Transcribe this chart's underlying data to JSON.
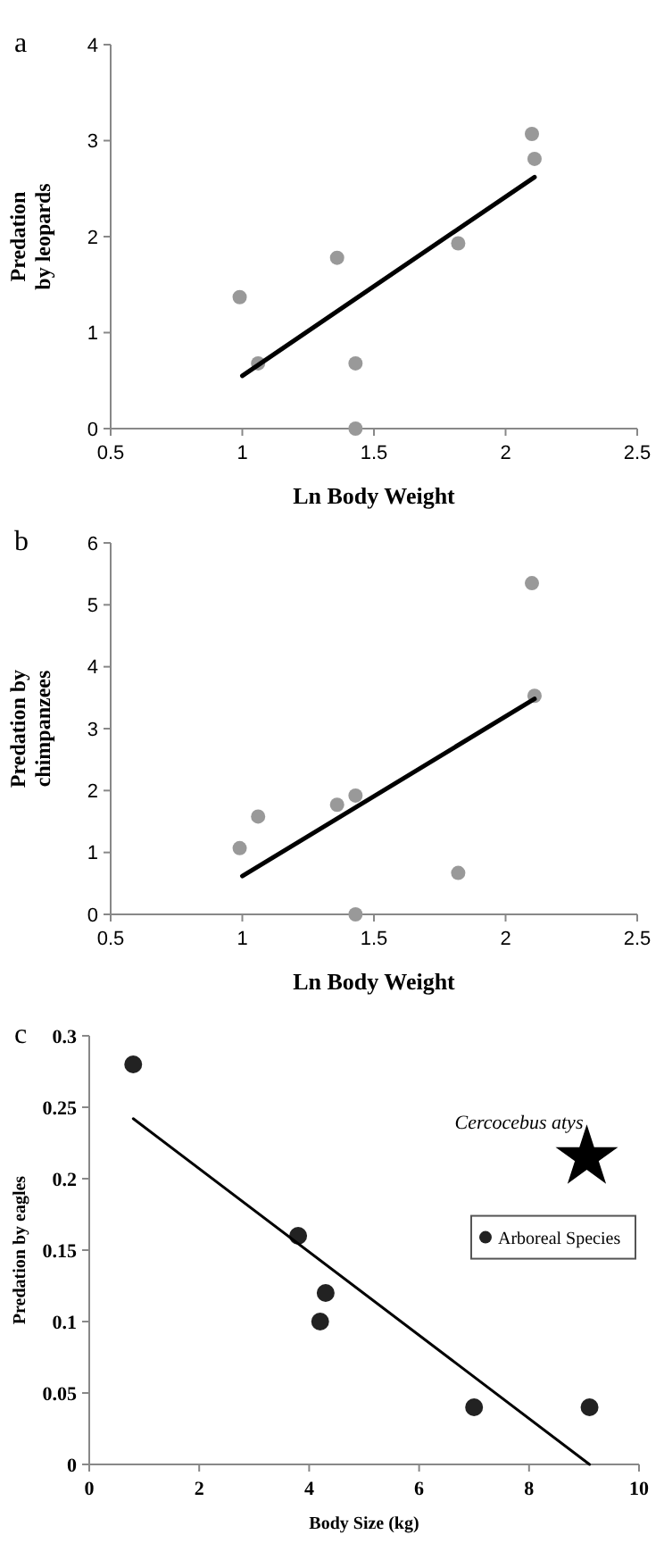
{
  "chart_data": [
    {
      "type": "scatter",
      "title": "a",
      "xlabel": "Ln Body Weight",
      "ylabel": "Predation\nby leopards",
      "xlim": [
        0.5,
        2.5
      ],
      "xticks": [
        0.5,
        1,
        1.5,
        2,
        2.5
      ],
      "ylim": [
        0,
        4
      ],
      "yticks": [
        0,
        1,
        2,
        3,
        4
      ],
      "series": [
        {
          "marker": "circle",
          "color": "#999999",
          "x": [
            0.99,
            1.06,
            1.36,
            1.43,
            1.43,
            1.82,
            2.1,
            2.11
          ],
          "values": [
            1.37,
            0.68,
            1.78,
            0.68,
            0,
            1.93,
            3.07,
            2.81
          ]
        },
        {
          "type": "line",
          "color": "#000000",
          "x": [
            1.0,
            2.11
          ],
          "values": [
            0.55,
            2.62
          ]
        }
      ]
    },
    {
      "type": "scatter",
      "title": "b",
      "xlabel": "Ln Body Weight",
      "ylabel": "Predation by\nchimpanzees",
      "xlim": [
        0.5,
        2.5
      ],
      "xticks": [
        0.5,
        1,
        1.5,
        2,
        2.5
      ],
      "ylim": [
        0,
        6
      ],
      "yticks": [
        0,
        1,
        2,
        3,
        4,
        5,
        6
      ],
      "series": [
        {
          "marker": "circle",
          "color": "#999999",
          "x": [
            0.99,
            1.06,
            1.36,
            1.43,
            1.43,
            1.82,
            2.1,
            2.11
          ],
          "values": [
            1.07,
            1.58,
            1.77,
            1.92,
            0,
            0.67,
            5.35,
            3.53
          ]
        },
        {
          "type": "line",
          "color": "#000000",
          "x": [
            1.0,
            2.11
          ],
          "values": [
            0.62,
            3.48
          ]
        }
      ]
    },
    {
      "type": "scatter",
      "title": "c",
      "xlabel": "Body Size (kg)",
      "ylabel": "Predation by eagles",
      "xlim": [
        0,
        10
      ],
      "xticks": [
        0,
        2,
        4,
        6,
        8,
        10
      ],
      "ylim": [
        0,
        0.3
      ],
      "yticks": [
        0,
        0.05,
        0.1,
        0.15,
        0.2,
        0.25,
        0.3
      ],
      "legend": "right",
      "annotations": [
        {
          "text": "Cercocebus atys",
          "x": 9.05,
          "y": 0.215
        }
      ],
      "series": [
        {
          "name": "Arboreal Species",
          "marker": "circle",
          "color": "#222222",
          "x": [
            0.8,
            3.8,
            4.3,
            4.2,
            7.0,
            9.1
          ],
          "values": [
            0.28,
            0.16,
            0.12,
            0.1,
            0.04,
            0.04
          ]
        },
        {
          "marker": "star",
          "color": "#000000",
          "x": [
            9.05
          ],
          "values": [
            0.215
          ]
        },
        {
          "type": "line",
          "color": "#000000",
          "x": [
            0.8,
            9.1
          ],
          "values": [
            0.242,
            0
          ]
        }
      ]
    }
  ]
}
